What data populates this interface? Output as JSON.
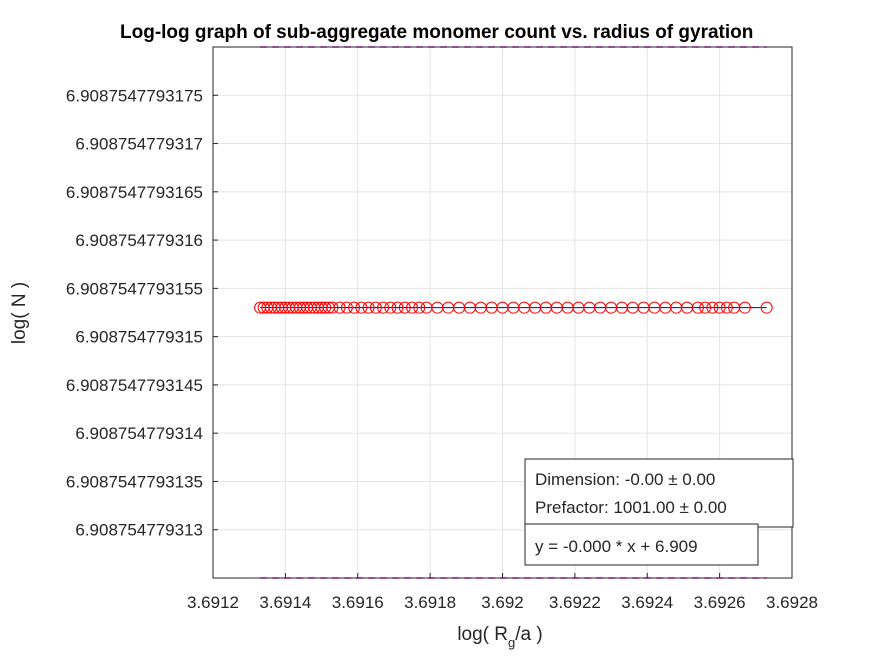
{
  "chart_data": {
    "type": "scatter",
    "title": "Log-log graph of sub-aggregate monomer count vs. radius of gyration",
    "xlabel": {
      "main": "log( R",
      "sub": "g",
      "tail": "/a )"
    },
    "ylabel": "log( N )",
    "xlim": [
      3.6912,
      3.6928
    ],
    "ylim": [
      6.9087547793125,
      6.908754779318
    ],
    "grid": true,
    "x_ticks": [
      3.6912,
      3.6914,
      3.6916,
      3.6918,
      3.692,
      3.6922,
      3.6924,
      3.6926,
      3.6928
    ],
    "x_tick_labels": [
      "3.6912",
      "3.6914",
      "3.6916",
      "3.6918",
      "3.692",
      "3.6922",
      "3.6924",
      "3.6926",
      "3.6928"
    ],
    "y_ticks": [
      6.908754779313,
      6.9087547793135,
      6.908754779314,
      6.9087547793145,
      6.908754779315,
      6.9087547793155,
      6.908754779316,
      6.9087547793165,
      6.908754779317,
      6.9087547793175
    ],
    "y_tick_labels": [
      "6.908754779313",
      "6.9087547793135",
      "6.908754779314",
      "6.9087547793145",
      "6.908754779315",
      "6.9087547793155",
      "6.908754779316",
      "6.9087547793165",
      "6.908754779317",
      "6.9087547793175"
    ],
    "series": [
      {
        "marker": "circle",
        "color": "#ff0000",
        "y_value": 6.9087547793153,
        "x": [
          3.69133,
          3.69134,
          3.69135,
          3.69136,
          3.69137,
          3.69138,
          3.69139,
          3.6914,
          3.69141,
          3.69142,
          3.69143,
          3.69144,
          3.69145,
          3.69146,
          3.69147,
          3.69148,
          3.69149,
          3.6915,
          3.69151,
          3.69152,
          3.69153,
          3.69155,
          3.69157,
          3.69159,
          3.69161,
          3.69163,
          3.69165,
          3.69167,
          3.69169,
          3.69171,
          3.69173,
          3.69175,
          3.69177,
          3.69179,
          3.69182,
          3.69185,
          3.69188,
          3.69191,
          3.69194,
          3.69197,
          3.692,
          3.69203,
          3.69206,
          3.69209,
          3.69212,
          3.69215,
          3.69218,
          3.69221,
          3.69224,
          3.69227,
          3.6923,
          3.69233,
          3.69236,
          3.69239,
          3.69242,
          3.69245,
          3.69248,
          3.69251,
          3.69254,
          3.69256,
          3.69258,
          3.6926,
          3.69262,
          3.69264,
          3.69267,
          3.69273
        ]
      }
    ],
    "fit_line": {
      "x": [
        3.69133,
        3.69273
      ],
      "y_value": 6.9087547793153,
      "color": "#0000cc"
    },
    "bound_lines": {
      "color": "#ff00ff",
      "style": "dashed",
      "x": [
        3.69133,
        3.69273
      ],
      "y": [
        6.908754779318,
        6.9087547793125
      ]
    },
    "annotations": {
      "dimension": "Dimension: -0.00 ± 0.00",
      "prefactor": "Prefactor: 1001.00 ± 0.00",
      "equation": "y = -0.000 * x + 6.909"
    }
  }
}
